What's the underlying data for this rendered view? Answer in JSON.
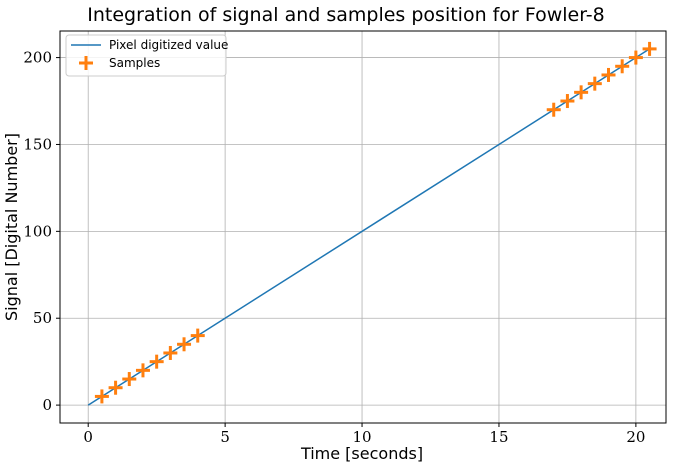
{
  "chart_data": {
    "type": "line",
    "title": "Integration of signal and samples position for Fowler-8",
    "xlabel": "Time [seconds]",
    "ylabel": "Signal [Digital Number]",
    "xlim": [
      -1.03,
      21.1
    ],
    "ylim": [
      -10.3,
      215.3
    ],
    "xticks": [
      0,
      5,
      10,
      15,
      20
    ],
    "yticks": [
      0,
      50,
      100,
      150,
      200
    ],
    "grid": true,
    "legend_position": "top-left",
    "series": [
      {
        "name": "Pixel digitized value",
        "kind": "line",
        "color": "#1f77b4",
        "x": [
          0,
          20.5
        ],
        "y": [
          0,
          205
        ]
      },
      {
        "name": "Samples",
        "kind": "scatter",
        "marker": "plus",
        "color": "#ff7f0e",
        "x": [
          0.5,
          1.0,
          1.5,
          2.0,
          2.5,
          3.0,
          3.5,
          4.0,
          17.0,
          17.5,
          18.0,
          18.5,
          19.0,
          19.5,
          20.0,
          20.5
        ],
        "y": [
          5,
          10,
          15,
          20,
          25,
          30,
          35,
          40,
          170,
          175,
          180,
          185,
          190,
          195,
          200,
          205
        ]
      }
    ]
  }
}
